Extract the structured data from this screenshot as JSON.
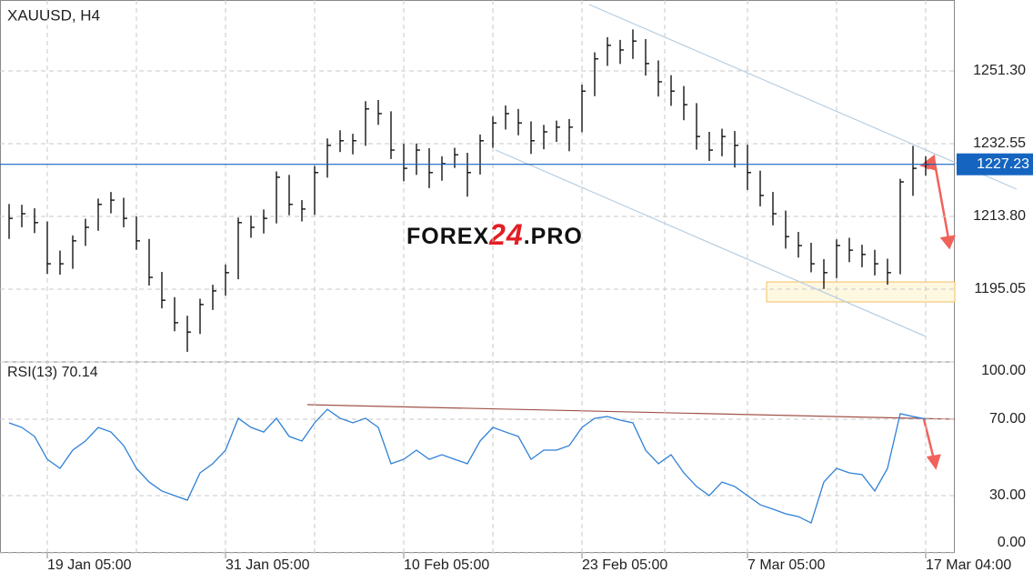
{
  "chart_data": [
    {
      "type": "ohlc",
      "title": "XAUUSD, H4",
      "color": "#000000",
      "last_color": "#1565c0",
      "watermark": [
        "FOREX",
        "24",
        ".PRO"
      ],
      "categories": [
        null,
        null,
        null,
        "19 Jan 05:00",
        null,
        null,
        null,
        null,
        null,
        null,
        null,
        null,
        null,
        null,
        null,
        null,
        null,
        "31 Jan 05:00",
        null,
        null,
        null,
        null,
        null,
        null,
        null,
        null,
        null,
        null,
        null,
        null,
        null,
        "10 Feb 05:00",
        null,
        null,
        null,
        null,
        null,
        null,
        null,
        null,
        null,
        null,
        null,
        null,
        null,
        "23 Feb 05:00",
        null,
        null,
        null,
        null,
        null,
        null,
        null,
        null,
        null,
        null,
        null,
        null,
        "7 Mar 05:00",
        null,
        null,
        null,
        null,
        null,
        null,
        null,
        null,
        null,
        null,
        null,
        null,
        null,
        "17 Mar 04:00"
      ],
      "high": [
        1217.0,
        1216.8,
        1215.9,
        1212.5,
        1205.0,
        1208.9,
        1213.2,
        1218.4,
        1220.1,
        1218.6,
        1213.8,
        1208.0,
        1199.5,
        1193.0,
        1188.2,
        1192.6,
        1196.2,
        1201.4,
        1213.5,
        1214.0,
        1215.6,
        1225.4,
        1224.5,
        1218.0,
        1226.8,
        1233.9,
        1236.0,
        1235.1,
        1243.5,
        1243.8,
        1240.9,
        1232.5,
        1232.6,
        1231.4,
        1229.3,
        1231.5,
        1230.2,
        1234.9,
        1239.6,
        1242.4,
        1241.5,
        1238.3,
        1237.4,
        1238.5,
        1238.9,
        1247.8,
        1256.1,
        1260.0,
        1259.3,
        1262.0,
        1259.5,
        1254.0,
        1250.2,
        1247.4,
        1243.0,
        1235.6,
        1236.4,
        1235.8,
        1232.3,
        1225.6,
        1220.1,
        1215.3,
        1209.8,
        1207.0,
        1202.8,
        1207.9,
        1208.3,
        1206.5,
        1205.2,
        1202.9,
        1223.5,
        1232.0,
        1229.3
      ],
      "low": [
        1208.0,
        1211.0,
        1209.5,
        1199.0,
        1198.8,
        1200.3,
        1206.2,
        1210.1,
        1214.6,
        1211.0,
        1205.2,
        1196.0,
        1190.1,
        1184.2,
        1178.9,
        1183.5,
        1189.7,
        1193.4,
        1197.6,
        1208.3,
        1209.4,
        1212.0,
        1214.1,
        1212.5,
        1214.2,
        1223.8,
        1230.4,
        1229.8,
        1232.0,
        1237.4,
        1228.6,
        1222.9,
        1224.5,
        1221.1,
        1223.0,
        1226.3,
        1218.9,
        1224.6,
        1231.5,
        1236.2,
        1234.7,
        1229.9,
        1231.1,
        1233.0,
        1230.6,
        1235.5,
        1244.8,
        1252.6,
        1253.1,
        1254.4,
        1250.1,
        1244.7,
        1242.3,
        1238.6,
        1231.0,
        1228.1,
        1229.3,
        1226.4,
        1220.6,
        1216.4,
        1211.5,
        1205.5,
        1203.2,
        1199.4,
        1195.1,
        1197.9,
        1202.0,
        1200.7,
        1198.6,
        1196.2,
        1198.9,
        1219.1,
        1224.3
      ],
      "close": [
        1213.3,
        1214.5,
        1212.2,
        1201.6,
        1201.6,
        1207.5,
        1211.0,
        1216.9,
        1218.0,
        1213.3,
        1207.5,
        1198.1,
        1192.2,
        1186.4,
        1184.0,
        1191.1,
        1194.6,
        1199.3,
        1212.2,
        1211.0,
        1213.3,
        1223.9,
        1216.9,
        1215.7,
        1225.1,
        1232.1,
        1233.3,
        1233.3,
        1241.5,
        1240.3,
        1230.9,
        1226.2,
        1230.9,
        1225.1,
        1227.4,
        1229.7,
        1225.1,
        1233.3,
        1237.9,
        1240.3,
        1237.9,
        1233.3,
        1235.6,
        1236.8,
        1236.8,
        1246.1,
        1254.4,
        1257.9,
        1256.7,
        1259.0,
        1253.2,
        1248.5,
        1246.1,
        1242.6,
        1234.4,
        1230.9,
        1234.4,
        1232.1,
        1225.1,
        1219.2,
        1214.5,
        1208.6,
        1206.3,
        1201.6,
        1199.3,
        1206.3,
        1205.1,
        1204.0,
        1201.6,
        1199.3,
        1222.7,
        1226.2,
        1227.23
      ],
      "ylim": [
        1176.3,
        1269.58
      ],
      "yticks": [
        1195.05,
        {
          "value": 1213.8,
          "label": "1213.80"
        },
        1232.55,
        {
          "value": 1251.3,
          "label": "1251.30"
        }
      ],
      "grid": true
    },
    {
      "type": "line",
      "title": "RSI(13)",
      "color": "#2f80d6",
      "values": [
        68.1,
        65.7,
        61.0,
        49.0,
        44.3,
        53.8,
        58.6,
        65.7,
        63.3,
        56.2,
        44.3,
        37.1,
        32.4,
        30.0,
        27.6,
        41.9,
        46.7,
        53.8,
        70.5,
        65.7,
        63.3,
        70.5,
        61.0,
        58.6,
        68.1,
        75.2,
        70.5,
        68.1,
        70.5,
        65.7,
        46.7,
        49.0,
        53.8,
        49.0,
        51.4,
        49.0,
        46.7,
        58.6,
        65.7,
        63.3,
        61.0,
        49.0,
        53.8,
        53.8,
        56.2,
        65.7,
        70.5,
        71.4,
        69.5,
        68.1,
        53.8,
        46.7,
        51.4,
        41.9,
        34.8,
        30.0,
        37.1,
        34.8,
        30.0,
        25.2,
        22.9,
        20.5,
        19.0,
        15.7,
        37.1,
        44.3,
        41.9,
        41.0,
        32.4,
        44.3,
        72.9,
        71.4,
        70.14
      ],
      "ylim": [
        0,
        100
      ],
      "yticks": [
        {
          "value": 0,
          "label": "0.00"
        },
        {
          "value": 30,
          "label": "30.00"
        },
        {
          "value": 70,
          "label": "70.00"
        },
        {
          "value": 100,
          "label": "100.00"
        }
      ],
      "grid": true
    }
  ]
}
